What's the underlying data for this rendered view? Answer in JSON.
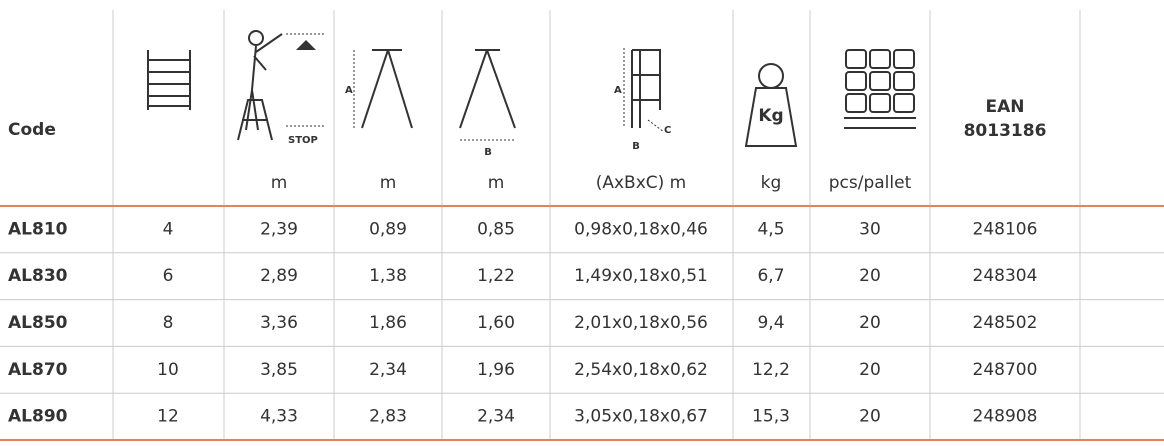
{
  "header": {
    "code": "Code",
    "units": [
      "m",
      "m",
      "m",
      "(AxBxC) m",
      "kg",
      "pcs/pallet"
    ],
    "ean": [
      "EAN",
      "8013186"
    ],
    "icon_labels": {
      "stop": "STOP",
      "a_frame_a": "A",
      "a_frame_b": "B",
      "step_a": "A",
      "step_b": "B",
      "step_c": "C",
      "weight": "Kg"
    }
  },
  "table": {
    "rows": [
      [
        "AL810",
        "4",
        "2,39",
        "0,89",
        "0,85",
        "0,98x0,18x0,46",
        "4,5",
        "30",
        "248106"
      ],
      [
        "AL830",
        "6",
        "2,89",
        "1,38",
        "1,22",
        "1,49x0,18x0,51",
        "6,7",
        "20",
        "248304"
      ],
      [
        "AL850",
        "8",
        "3,36",
        "1,86",
        "1,60",
        "2,01x0,18x0,56",
        "9,4",
        "20",
        "248502"
      ],
      [
        "AL870",
        "10",
        "3,85",
        "2,34",
        "1,96",
        "2,54x0,18x0,62",
        "12,2",
        "20",
        "248700"
      ],
      [
        "AL890",
        "12",
        "4,33",
        "2,83",
        "2,34",
        "3,05x0,18x0,67",
        "15,3",
        "20",
        "248908"
      ]
    ]
  }
}
